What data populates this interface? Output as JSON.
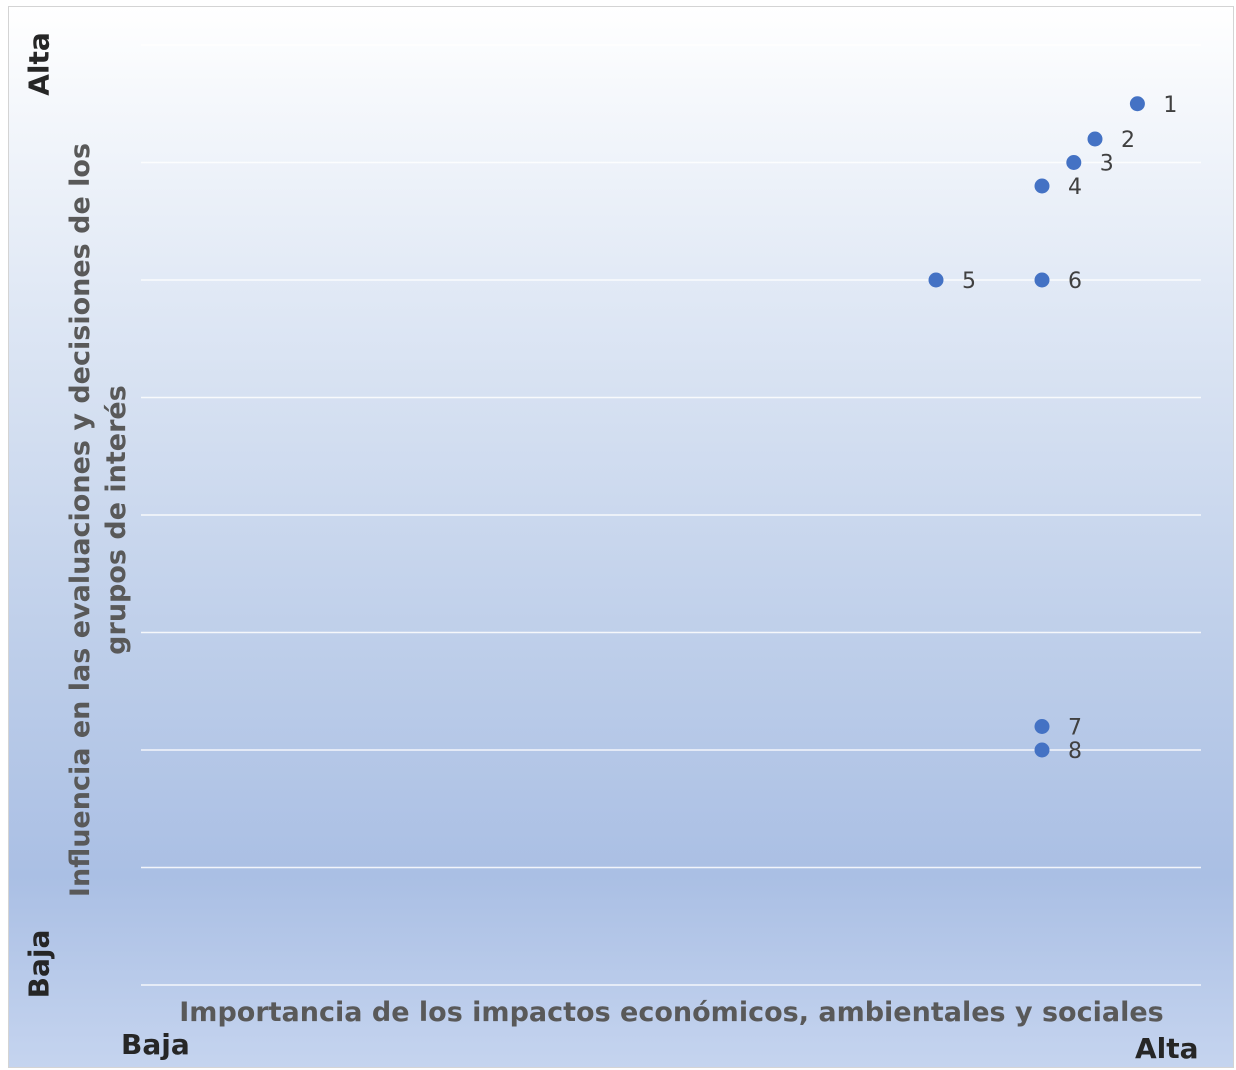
{
  "chart_data": {
    "type": "scatter",
    "xlabel": "Importancia de los impactos económicos, ambientales y sociales",
    "ylabel": "Influencia en las evaluaciones y decisiones de los grupos de interés",
    "x_axis_low": "Baja",
    "x_axis_high": "Alta",
    "y_axis_low": "Baja",
    "y_axis_high": "Alta",
    "xlim": [
      0,
      10
    ],
    "ylim": [
      0,
      8
    ],
    "grid": true,
    "points": [
      {
        "label": "1",
        "x": 9.4,
        "y": 7.5
      },
      {
        "label": "2",
        "x": 9.0,
        "y": 7.2
      },
      {
        "label": "3",
        "x": 8.8,
        "y": 7.0
      },
      {
        "label": "4",
        "x": 8.5,
        "y": 6.8
      },
      {
        "label": "5",
        "x": 7.5,
        "y": 6.0
      },
      {
        "label": "6",
        "x": 8.5,
        "y": 6.0
      },
      {
        "label": "7",
        "x": 8.5,
        "y": 2.2
      },
      {
        "label": "8",
        "x": 8.5,
        "y": 2.0
      }
    ],
    "colors": {
      "point": "#4472c4",
      "gridline": "#ffffff"
    }
  }
}
